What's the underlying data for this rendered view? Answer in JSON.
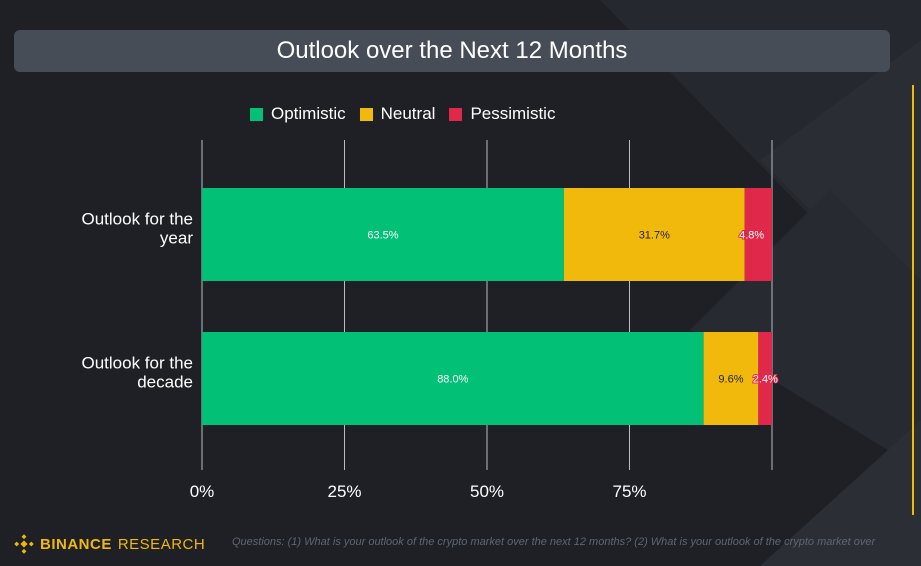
{
  "title": "Outlook over the Next 12 Months",
  "legend": [
    {
      "label": "Optimistic",
      "color": "#02c076"
    },
    {
      "label": "Neutral",
      "color": "#f0b90b"
    },
    {
      "label": "Pessimistic",
      "color": "#e0294a"
    }
  ],
  "chart_data": {
    "type": "bar",
    "orientation": "horizontal",
    "stacked": true,
    "title": "Outlook over the Next 12 Months",
    "categories": [
      "Outlook for the year",
      "Outlook for the decade"
    ],
    "category_lines": [
      [
        "Outlook for the",
        "year"
      ],
      [
        "Outlook for the",
        "decade"
      ]
    ],
    "series": [
      {
        "name": "Optimistic",
        "color": "#02c076",
        "values": [
          63.5,
          88.0
        ],
        "labels": [
          "63.5%",
          "88.0%"
        ]
      },
      {
        "name": "Neutral",
        "color": "#f0b90b",
        "values": [
          31.7,
          9.6
        ],
        "labels": [
          "31.7%",
          "9.6%"
        ]
      },
      {
        "name": "Pessimistic",
        "color": "#e0294a",
        "values": [
          4.8,
          2.4
        ],
        "labels": [
          "4.8%",
          "2.4%"
        ]
      }
    ],
    "x_ticks": [
      0,
      25,
      50,
      75
    ],
    "x_tick_labels": [
      "0%",
      "25%",
      "50%",
      "75%"
    ],
    "xlim": [
      0,
      100
    ],
    "grid": true,
    "legend_position": "top"
  },
  "footer": {
    "brand": "BINANCE",
    "brand_sub": "RESEARCH",
    "note": "Questions: (1) What is your outlook of the crypto market over the next 12 months? (2) What is your outlook of the crypto market over"
  },
  "colors": {
    "background": "#1e2026",
    "title_bar": "#474d57",
    "accent": "#f0b90b"
  }
}
